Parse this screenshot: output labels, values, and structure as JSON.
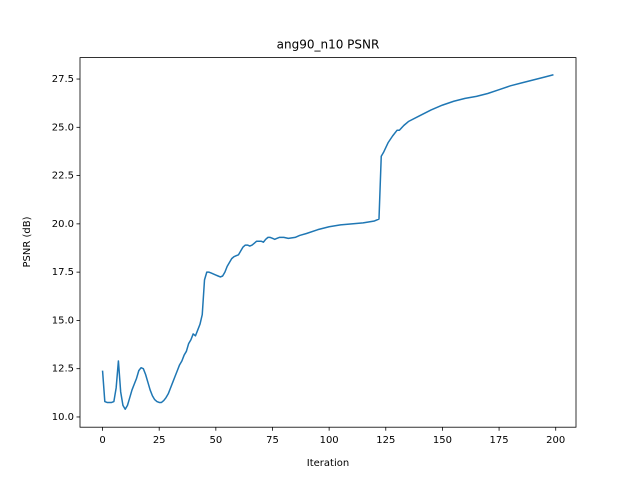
{
  "chart_data": {
    "type": "line",
    "title": "ang90_n10 PSNR",
    "x_label": "Iteration",
    "y_label": "PSNR (dB)",
    "x": [
      0,
      1,
      2,
      3,
      4,
      5,
      6,
      7,
      8,
      9,
      10,
      11,
      12,
      13,
      14,
      15,
      16,
      17,
      18,
      19,
      20,
      21,
      22,
      23,
      24,
      25,
      26,
      27,
      28,
      29,
      30,
      31,
      32,
      33,
      34,
      35,
      36,
      37,
      38,
      39,
      40,
      41,
      42,
      43,
      44,
      45,
      46,
      47,
      48,
      49,
      50,
      51,
      52,
      53,
      54,
      55,
      56,
      57,
      58,
      59,
      60,
      61,
      62,
      63,
      64,
      65,
      66,
      67,
      68,
      69,
      70,
      71,
      72,
      73,
      74,
      75,
      76,
      77,
      78,
      80,
      82,
      85,
      87,
      90,
      95,
      100,
      105,
      110,
      115,
      120,
      122,
      123,
      124,
      126,
      128,
      130,
      131,
      133,
      135,
      140,
      145,
      150,
      155,
      160,
      165,
      170,
      175,
      180,
      185,
      190,
      195,
      199
    ],
    "series": [
      {
        "name": "PSNR",
        "color": "#1f77b4",
        "values": [
          12.4,
          10.8,
          10.75,
          10.75,
          10.75,
          10.8,
          11.5,
          12.9,
          11.3,
          10.6,
          10.4,
          10.6,
          11.0,
          11.4,
          11.7,
          12.0,
          12.4,
          12.55,
          12.5,
          12.2,
          11.8,
          11.4,
          11.1,
          10.9,
          10.8,
          10.75,
          10.75,
          10.85,
          11.0,
          11.2,
          11.5,
          11.8,
          12.1,
          12.4,
          12.7,
          12.9,
          13.2,
          13.4,
          13.8,
          14.0,
          14.3,
          14.2,
          14.5,
          14.8,
          15.3,
          17.1,
          17.5,
          17.5,
          17.45,
          17.4,
          17.35,
          17.3,
          17.25,
          17.3,
          17.5,
          17.8,
          18.0,
          18.2,
          18.3,
          18.35,
          18.4,
          18.6,
          18.8,
          18.9,
          18.9,
          18.85,
          18.9,
          19.0,
          19.1,
          19.1,
          19.1,
          19.05,
          19.2,
          19.3,
          19.3,
          19.25,
          19.2,
          19.25,
          19.3,
          19.3,
          19.25,
          19.3,
          19.4,
          19.5,
          19.7,
          19.85,
          19.95,
          20.0,
          20.05,
          20.15,
          20.25,
          23.5,
          23.7,
          24.2,
          24.55,
          24.85,
          24.85,
          25.1,
          25.3,
          25.6,
          25.9,
          26.15,
          26.35,
          26.5,
          26.6,
          26.75,
          26.95,
          27.15,
          27.3,
          27.45,
          27.6,
          27.72
        ]
      }
    ],
    "xlim": [
      -9.95,
      208.95
    ],
    "ylim": [
      9.47,
      28.61
    ],
    "xticks": [
      0,
      25,
      50,
      75,
      100,
      125,
      150,
      175,
      200
    ],
    "yticks": [
      {
        "value": 10,
        "label": "10.0"
      },
      12.5,
      {
        "value": 15,
        "label": "15.0"
      },
      17.5,
      {
        "value": 20,
        "label": "20.0"
      },
      22.5,
      {
        "value": 25,
        "label": "25.0"
      },
      27.5
    ]
  }
}
